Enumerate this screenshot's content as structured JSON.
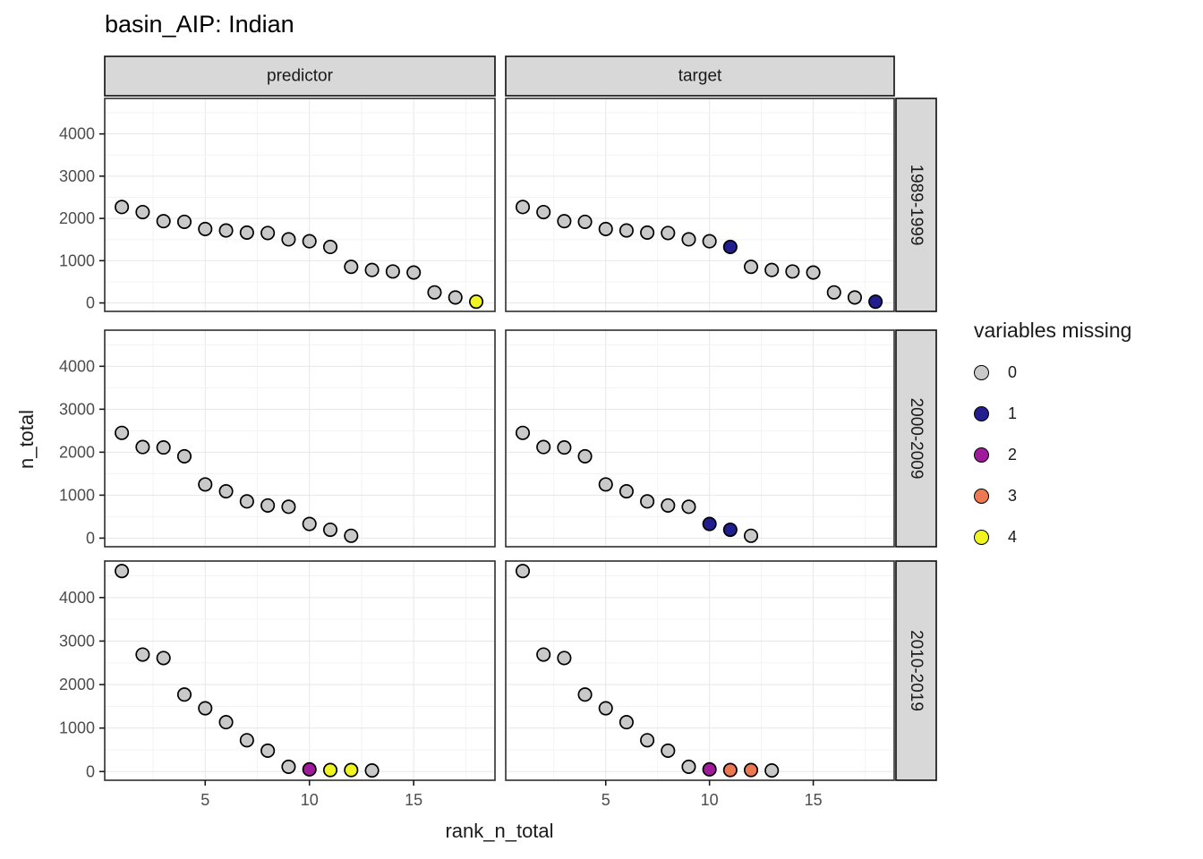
{
  "title": "basin_AIP: Indian",
  "chart_data": {
    "type": "scatter",
    "title": "basin_AIP: Indian",
    "xlabel": "rank_n_total",
    "ylabel": "n_total",
    "facet_col_labels": [
      "predictor",
      "target"
    ],
    "facet_row_labels": [
      "1989-1999",
      "2000-2009",
      "2010-2019"
    ],
    "x_ticks": [
      "5",
      "10",
      "15"
    ],
    "x_tick_values": [
      5,
      10,
      15
    ],
    "y_ticks": [
      "4000",
      "3000",
      "2000",
      "1000",
      "0"
    ],
    "y_tick_values": [
      4000,
      3000,
      2000,
      1000,
      0
    ],
    "x_domain": [
      0.18,
      18.9
    ],
    "y_domain": [
      -200,
      4840
    ],
    "grid": {
      "x_step": 2.5,
      "y_step": 500,
      "x_major": 5,
      "y_major": 1000,
      "grid_on": true
    },
    "legend_position": "right",
    "point_stroke": "#000000",
    "legend": {
      "title": "variables missing",
      "items": [
        {
          "label": "0",
          "color": "#C9C9C9"
        },
        {
          "label": "1",
          "color": "#231E8F"
        },
        {
          "label": "2",
          "color": "#A01B9B"
        },
        {
          "label": "3",
          "color": "#ED7953"
        },
        {
          "label": "4",
          "color": "#F0F522"
        }
      ]
    },
    "series_by_panel": [
      {
        "facet_col": "predictor",
        "facet_row": "1989-1999",
        "x": [
          1,
          2,
          3,
          4,
          5,
          6,
          7,
          8,
          9,
          10,
          11,
          12,
          13,
          14,
          15,
          16,
          17,
          18
        ],
        "y": [
          2270,
          2150,
          1935,
          1920,
          1750,
          1715,
          1665,
          1655,
          1505,
          1460,
          1325,
          855,
          780,
          745,
          720,
          250,
          130,
          30
        ],
        "missing": [
          0,
          0,
          0,
          0,
          0,
          0,
          0,
          0,
          0,
          0,
          0,
          0,
          0,
          0,
          0,
          0,
          0,
          4
        ]
      },
      {
        "facet_col": "target",
        "facet_row": "1989-1999",
        "x": [
          1,
          2,
          3,
          4,
          5,
          6,
          7,
          8,
          9,
          10,
          11,
          12,
          13,
          14,
          15,
          16,
          17,
          18
        ],
        "y": [
          2270,
          2150,
          1935,
          1920,
          1750,
          1715,
          1665,
          1655,
          1505,
          1460,
          1325,
          855,
          780,
          745,
          720,
          250,
          130,
          30
        ],
        "missing": [
          0,
          0,
          0,
          0,
          0,
          0,
          0,
          0,
          0,
          0,
          1,
          0,
          0,
          0,
          0,
          0,
          0,
          1
        ]
      },
      {
        "facet_col": "predictor",
        "facet_row": "2000-2009",
        "x": [
          1,
          2,
          3,
          4,
          5,
          6,
          7,
          8,
          9,
          10,
          11,
          12
        ],
        "y": [
          2450,
          2120,
          2110,
          1905,
          1250,
          1090,
          855,
          760,
          730,
          330,
          195,
          55
        ],
        "missing": [
          0,
          0,
          0,
          0,
          0,
          0,
          0,
          0,
          0,
          0,
          0,
          0
        ]
      },
      {
        "facet_col": "target",
        "facet_row": "2000-2009",
        "x": [
          1,
          2,
          3,
          4,
          5,
          6,
          7,
          8,
          9,
          10,
          11,
          12
        ],
        "y": [
          2450,
          2120,
          2110,
          1905,
          1250,
          1090,
          855,
          760,
          730,
          330,
          195,
          55
        ],
        "missing": [
          0,
          0,
          0,
          0,
          0,
          0,
          0,
          0,
          0,
          1,
          1,
          0
        ]
      },
      {
        "facet_col": "predictor",
        "facet_row": "2010-2019",
        "x": [
          1,
          2,
          3,
          4,
          5,
          6,
          7,
          8,
          9,
          10,
          11,
          12,
          13
        ],
        "y": [
          4610,
          2690,
          2610,
          1770,
          1455,
          1135,
          720,
          480,
          110,
          50,
          35,
          35,
          25
        ],
        "missing": [
          0,
          0,
          0,
          0,
          0,
          0,
          0,
          0,
          0,
          2,
          4,
          4,
          0
        ]
      },
      {
        "facet_col": "target",
        "facet_row": "2010-2019",
        "x": [
          1,
          2,
          3,
          4,
          5,
          6,
          7,
          8,
          9,
          10,
          11,
          12,
          13
        ],
        "y": [
          4610,
          2690,
          2610,
          1770,
          1455,
          1135,
          720,
          480,
          110,
          50,
          35,
          35,
          25
        ],
        "missing": [
          0,
          0,
          0,
          0,
          0,
          0,
          0,
          0,
          0,
          2,
          3,
          3,
          0
        ]
      }
    ]
  }
}
